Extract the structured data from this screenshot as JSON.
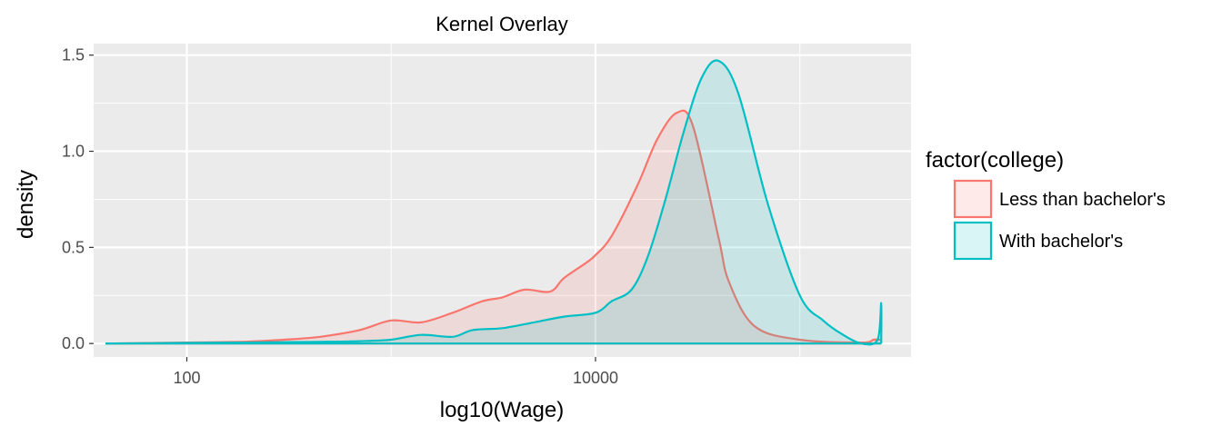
{
  "chart_data": {
    "type": "area",
    "title": "Kernel Overlay",
    "xlabel": "log10(Wage)",
    "ylabel": "density",
    "x_scale": "log10",
    "xlim": [
      35,
      350000
    ],
    "ylim": [
      -0.07,
      1.56
    ],
    "x_ticks": [
      100,
      10000
    ],
    "x_tick_labels": [
      "100",
      "10000"
    ],
    "y_ticks": [
      0.0,
      0.5,
      1.0,
      1.5
    ],
    "y_tick_labels": [
      "0.0",
      "0.5",
      "1.0",
      "1.5"
    ],
    "grid": true,
    "legend": {
      "title": "factor(college)",
      "position": "right"
    },
    "series": [
      {
        "name": "Less than bachelor's",
        "color": "#F8766D",
        "x": [
          40,
          100,
          200,
          300,
          450,
          700,
          1000,
          1400,
          2000,
          2800,
          3500,
          4500,
          6000,
          7000,
          9000,
          10000,
          12000,
          16000,
          20000,
          25000,
          30000,
          40000,
          45000,
          60000,
          100000,
          200000,
          230000,
          250000
        ],
        "y": [
          0.0,
          0.005,
          0.01,
          0.02,
          0.035,
          0.07,
          0.12,
          0.11,
          0.16,
          0.22,
          0.24,
          0.28,
          0.27,
          0.34,
          0.42,
          0.46,
          0.56,
          0.82,
          1.06,
          1.2,
          1.13,
          0.55,
          0.32,
          0.09,
          0.02,
          0.005,
          0.02,
          0.02
        ]
      },
      {
        "name": "With bachelor's",
        "color": "#00BFC4",
        "x": [
          40,
          100,
          200,
          400,
          700,
          1000,
          1400,
          2000,
          2500,
          3500,
          5000,
          7000,
          10000,
          12000,
          15000,
          18000,
          22000,
          27000,
          33000,
          40000,
          50000,
          70000,
          100000,
          130000,
          160000,
          200000,
          240000,
          250000,
          250000
        ],
        "y": [
          0.0,
          0.003,
          0.005,
          0.008,
          0.012,
          0.02,
          0.045,
          0.035,
          0.07,
          0.08,
          0.11,
          0.14,
          0.16,
          0.22,
          0.28,
          0.45,
          0.75,
          1.1,
          1.38,
          1.47,
          1.3,
          0.72,
          0.25,
          0.12,
          0.05,
          0.0,
          0.02,
          0.21,
          0.0
        ]
      }
    ]
  }
}
